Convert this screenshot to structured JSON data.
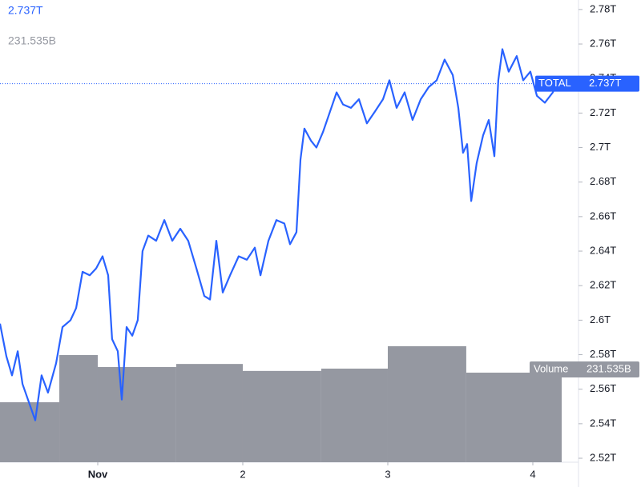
{
  "chart_data": {
    "type": "line",
    "annotations": [
      "2.737T",
      "231.535B"
    ],
    "series": [
      {
        "name": "TOTAL",
        "color": "#2962ff",
        "x": [
          0.326,
          0.37,
          0.409,
          0.448,
          0.481,
          0.519,
          0.569,
          0.613,
          0.657,
          0.713,
          0.757,
          0.812,
          0.851,
          0.895,
          0.945,
          0.989,
          1.033,
          1.072,
          1.099,
          1.138,
          1.166,
          1.199,
          1.238,
          1.276,
          1.309,
          1.348,
          1.403,
          1.459,
          1.514,
          1.569,
          1.624,
          1.68,
          1.735,
          1.774,
          1.818,
          1.862,
          1.912,
          1.972,
          2.028,
          2.083,
          2.122,
          2.177,
          2.232,
          2.287,
          2.326,
          2.37,
          2.398,
          2.425,
          2.47,
          2.508,
          2.553,
          2.602,
          2.647,
          2.691,
          2.746,
          2.801,
          2.856,
          2.912,
          2.967,
          3.011,
          3.061,
          3.116,
          3.171,
          3.227,
          3.282,
          3.337,
          3.392,
          3.448,
          3.486,
          3.519,
          3.547,
          3.575,
          3.613,
          3.657,
          3.696,
          3.735,
          3.762,
          3.79,
          3.834,
          3.889,
          3.934,
          3.983,
          4.028,
          4.083,
          4.138,
          4.16
        ],
        "values": [
          2.598,
          2.579,
          2.568,
          2.582,
          2.563,
          2.554,
          2.542,
          2.568,
          2.558,
          2.575,
          2.596,
          2.6,
          2.607,
          2.628,
          2.626,
          2.63,
          2.637,
          2.626,
          2.589,
          2.582,
          2.554,
          2.596,
          2.591,
          2.6,
          2.64,
          2.649,
          2.646,
          2.658,
          2.646,
          2.653,
          2.646,
          2.63,
          2.614,
          2.612,
          2.646,
          2.616,
          2.626,
          2.637,
          2.635,
          2.642,
          2.626,
          2.646,
          2.658,
          2.656,
          2.644,
          2.651,
          2.693,
          2.711,
          2.704,
          2.7,
          2.709,
          2.721,
          2.732,
          2.725,
          2.723,
          2.728,
          2.714,
          2.721,
          2.728,
          2.739,
          2.723,
          2.732,
          2.716,
          2.728,
          2.735,
          2.739,
          2.751,
          2.742,
          2.723,
          2.697,
          2.702,
          2.669,
          2.691,
          2.707,
          2.716,
          2.695,
          2.739,
          2.757,
          2.744,
          2.753,
          2.739,
          2.744,
          2.73,
          2.726,
          2.732,
          2.737
        ]
      }
    ],
    "volume": {
      "name": "Volume",
      "color": "#9598a1",
      "bins": [
        0.326,
        0.735,
        1.0,
        1.541,
        2.0,
        2.541,
        3.0,
        3.541,
        4.199
      ],
      "values": [
        155,
        277,
        246,
        254,
        236,
        242,
        300,
        231.535
      ],
      "ylim": [
        0,
        1195
      ]
    },
    "xlim": [
      0.326,
      4.315
    ],
    "xticks": [
      {
        "value": 1,
        "label": "Nov"
      },
      2,
      3,
      4
    ],
    "ylim": [
      2.5177,
      2.7855
    ],
    "yticks": [
      {
        "value": 2.52,
        "label": "2.52T"
      },
      {
        "value": 2.54,
        "label": "2.54T"
      },
      {
        "value": 2.56,
        "label": "2.56T"
      },
      {
        "value": 2.58,
        "label": "2.58T"
      },
      {
        "value": 2.6,
        "label": "2.6T"
      },
      {
        "value": 2.62,
        "label": "2.62T"
      },
      {
        "value": 2.64,
        "label": "2.64T"
      },
      {
        "value": 2.66,
        "label": "2.66T"
      },
      {
        "value": 2.68,
        "label": "2.68T"
      },
      {
        "value": 2.7,
        "label": "2.7T"
      },
      {
        "value": 2.72,
        "label": "2.72T"
      },
      {
        "value": 2.74,
        "label": "2.74T"
      },
      {
        "value": 2.76,
        "label": "2.76T"
      },
      {
        "value": 2.78,
        "label": "2.78T"
      }
    ]
  }
}
